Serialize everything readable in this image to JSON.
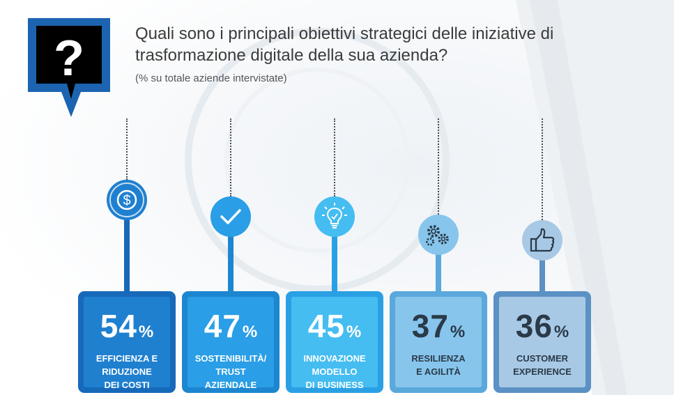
{
  "header": {
    "title": "Quali sono i principali obiettivi strategici delle iniziative di trasformazione digitale della sua azienda?",
    "subtitle": "(% su totale aziende intervistate)"
  },
  "chart_data": {
    "type": "bar",
    "title": "Quali sono i principali obiettivi strategici delle iniziative di trasformazione digitale della sua azienda?",
    "subtitle": "(% su totale aziende intervistate)",
    "categories": [
      "EFFICIENZA E RIDUZIONE DEI COSTI",
      "SOSTENIBILITÀ/ TRUST AZIENDALE",
      "INNOVAZIONE MODELLO DI BUSINESS",
      "RESILIENZA E AGILITÀ",
      "CUSTOMER EXPERIENCE"
    ],
    "values": [
      54,
      47,
      45,
      37,
      36
    ],
    "unit": "%"
  },
  "items": [
    {
      "value": "54",
      "unit": "%",
      "label_lines": [
        "EFFICIENZA E",
        "RIDUZIONE",
        "DEI COSTI"
      ],
      "icon": "dollar-coin-icon",
      "colors": {
        "outer": "#1769ba",
        "inner": "#1f80d0",
        "circle": "#1f80d0",
        "stem": "#1769ba",
        "text": "#ffffff"
      }
    },
    {
      "value": "47",
      "unit": "%",
      "label_lines": [
        "SOSTENIBILITÀ/",
        "TRUST",
        "AZIENDALE"
      ],
      "icon": "checkmark-icon",
      "colors": {
        "outer": "#1d86d0",
        "inner": "#2a9ee6",
        "circle": "#2a9ee6",
        "stem": "#1d86d0",
        "text": "#ffffff"
      }
    },
    {
      "value": "45",
      "unit": "%",
      "label_lines": [
        "INNOVAZIONE",
        "MODELLO",
        "DI BUSINESS"
      ],
      "icon": "lightbulb-icon",
      "colors": {
        "outer": "#2aa0e4",
        "inner": "#45bdf1",
        "circle": "#45bdf1",
        "stem": "#2aa0e4",
        "text": "#ffffff"
      }
    },
    {
      "value": "37",
      "unit": "%",
      "label_lines": [
        "RESILIENZA",
        "E AGILITÀ"
      ],
      "icon": "gears-icon",
      "colors": {
        "outer": "#5aa8dc",
        "inner": "#87c5ec",
        "circle": "#87c5ec",
        "stem": "#5aa8dc",
        "text": "#2a3a48"
      }
    },
    {
      "value": "36",
      "unit": "%",
      "label_lines": [
        "CUSTOMER",
        "EXPERIENCE"
      ],
      "icon": "thumbs-up-icon",
      "colors": {
        "outer": "#5b91c4",
        "inner": "#a8c9e6",
        "circle": "#a8c9e6",
        "stem": "#5b91c4",
        "text": "#2a3a48"
      }
    }
  ]
}
